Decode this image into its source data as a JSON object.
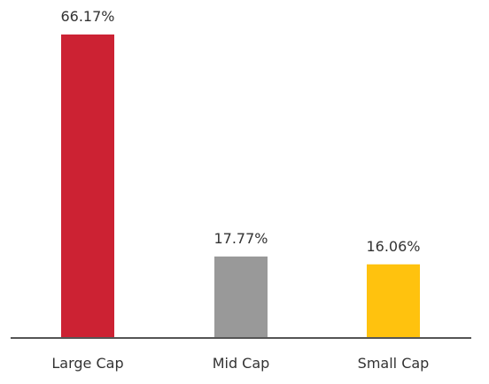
{
  "chart_data": {
    "type": "bar",
    "categories": [
      "Large Cap",
      "Mid Cap",
      "Small Cap"
    ],
    "values": [
      66.17,
      17.77,
      16.06
    ],
    "data_labels": [
      "66.17%",
      "17.77%",
      "16.06%"
    ],
    "unit": "%",
    "colors": [
      "#cc2233",
      "#999999",
      "#ffc20e"
    ],
    "ylim": [
      0,
      66.17
    ],
    "grid": false,
    "title": "",
    "xlabel": "",
    "ylabel": ""
  }
}
